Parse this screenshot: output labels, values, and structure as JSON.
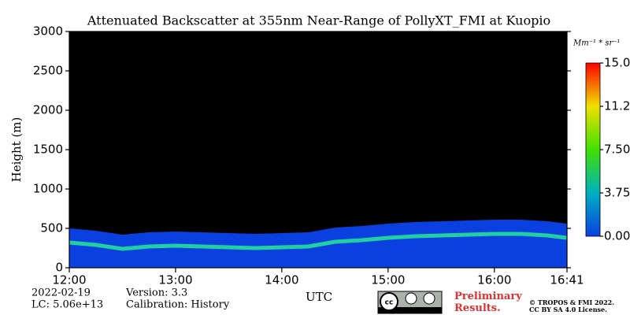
{
  "chart_data": {
    "type": "heatmap",
    "title": "Attenuated Backscatter at 355nm Near-Range of PollyXT_FMI at Kuopio",
    "ylabel": "Height (m)",
    "xlabel": "UTC",
    "x": [
      12.0,
      12.25,
      12.5,
      12.75,
      13.0,
      13.25,
      13.5,
      13.75,
      14.0,
      14.25,
      14.5,
      14.75,
      15.0,
      15.25,
      15.5,
      15.75,
      16.0,
      16.25,
      16.5,
      16.68
    ],
    "values": [
      320,
      290,
      240,
      270,
      280,
      270,
      260,
      250,
      260,
      270,
      330,
      350,
      380,
      400,
      410,
      420,
      430,
      430,
      410,
      380
    ],
    "xlim": [
      12.0,
      16.6833
    ],
    "xticks": [
      {
        "value": 12,
        "label": "12:00"
      },
      {
        "value": 13,
        "label": "13:00"
      },
      {
        "value": 14,
        "label": "14:00"
      },
      {
        "value": 15,
        "label": "15:00"
      },
      {
        "value": 16,
        "label": "16:00"
      },
      {
        "value": 16.6833,
        "label": "16:41"
      }
    ],
    "ylim": [
      0,
      3000
    ],
    "yticks": [
      0,
      500,
      1000,
      1500,
      2000,
      2500,
      3000
    ],
    "background_color": "#000000",
    "ground_color": "#0a40e0",
    "layer_color": "#20d0a0",
    "colorbar_label": "Mm⁻¹ * sr⁻¹",
    "clim": [
      0,
      15
    ],
    "cticks": [
      {
        "value": 0,
        "label": "0.00"
      },
      {
        "value": 3.75,
        "label": "3.75"
      },
      {
        "value": 7.5,
        "label": "7.50"
      },
      {
        "value": 11.25,
        "label": "11.25"
      },
      {
        "value": 15,
        "label": "15.00"
      }
    ],
    "colormap": [
      "#0a40e0",
      "#00b0c0",
      "#40e000",
      "#f0e000",
      "#ff0000"
    ]
  },
  "footer": {
    "date": "2022-02-19",
    "lc": "LC: 5.06e+13",
    "version": "Version: 3.3",
    "calibration": "Calibration: History",
    "preliminary": "Preliminary Results.",
    "copyright": "© TROPOS & FMI 2022.",
    "license": "CC BY SA 4.0 License."
  }
}
